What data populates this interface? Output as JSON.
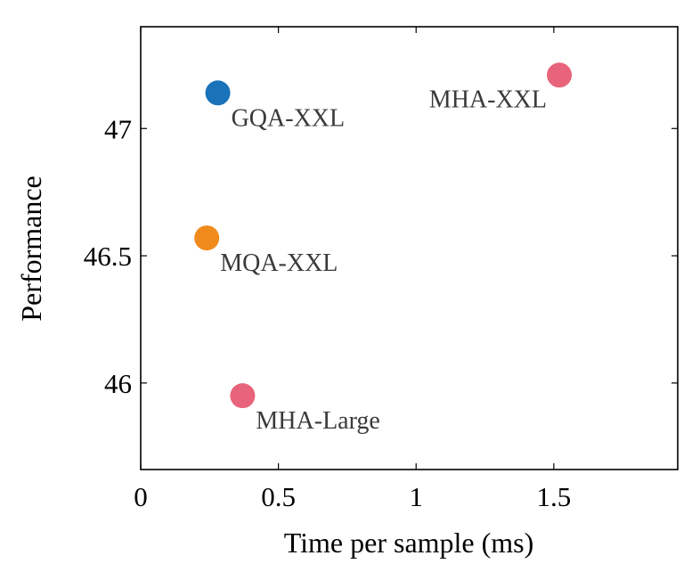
{
  "chart_data": {
    "type": "scatter",
    "xlabel": "Time per sample (ms)",
    "ylabel": "Performance",
    "xlim": [
      0,
      1.95
    ],
    "ylim": [
      45.66,
      47.4
    ],
    "x_ticks": [
      0,
      0.5,
      1,
      1.5
    ],
    "x_tick_labels": [
      "0",
      "0.5",
      "1",
      "1.5"
    ],
    "y_ticks": [
      46,
      46.5,
      47
    ],
    "y_tick_labels": [
      "46",
      "46.5",
      "47"
    ],
    "grid": false,
    "points": [
      {
        "label": "MHA-XXL",
        "x": 1.52,
        "y": 47.21,
        "color": "#e8647a",
        "label_side": "left"
      },
      {
        "label": "GQA-XXL",
        "x": 0.28,
        "y": 47.14,
        "color": "#1a72b8",
        "label_side": "right"
      },
      {
        "label": "MQA-XXL",
        "x": 0.24,
        "y": 46.57,
        "color": "#f08a1c",
        "label_side": "right"
      },
      {
        "label": "MHA-Large",
        "x": 0.37,
        "y": 45.95,
        "color": "#e8647a",
        "label_side": "right"
      }
    ]
  }
}
